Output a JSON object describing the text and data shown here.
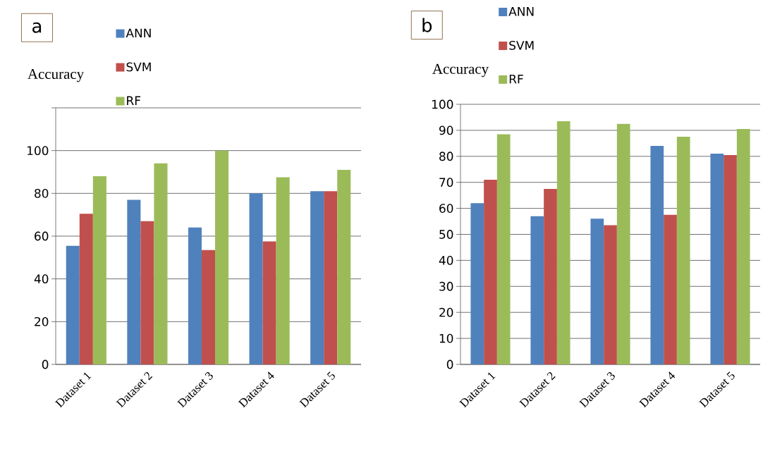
{
  "chart_data": [
    {
      "type": "bar",
      "title": "a",
      "ylabel": "Accuracy",
      "categories": [
        "Dataset 1",
        "Dataset 2",
        "Dataset 3",
        "Dataset 4",
        "Dataset 5"
      ],
      "series": [
        {
          "name": "ANN",
          "color": "#4f81bd",
          "values": [
            55.5,
            77,
            64,
            80,
            81
          ]
        },
        {
          "name": "SVM",
          "color": "#c0504d",
          "values": [
            70.5,
            67,
            53.5,
            57.5,
            81
          ]
        },
        {
          "name": "RF",
          "color": "#9bbb59",
          "values": [
            88,
            94,
            100,
            87.5,
            91
          ]
        }
      ],
      "ylim": [
        0,
        120
      ],
      "yticks": [
        0,
        20,
        40,
        60,
        80,
        100,
        {
          "value": 120,
          "label": null
        }
      ],
      "grid": "y",
      "legend": "top"
    },
    {
      "type": "bar",
      "title": "b",
      "ylabel": "Accuracy",
      "categories": [
        "Dataset 1",
        "Dataset 2",
        "Dataset 3",
        "Dataset 4",
        "Dataset 5"
      ],
      "series": [
        {
          "name": "ANN",
          "color": "#4f81bd",
          "values": [
            62,
            57,
            56,
            84,
            81
          ]
        },
        {
          "name": "SVM",
          "color": "#c0504d",
          "values": [
            71,
            67.5,
            53.5,
            57.5,
            80.5
          ]
        },
        {
          "name": "RF",
          "color": "#9bbb59",
          "values": [
            88.5,
            93.5,
            92.5,
            87.5,
            90.5
          ]
        }
      ],
      "ylim": [
        0,
        100
      ],
      "yticks": [
        0,
        10,
        20,
        30,
        40,
        50,
        60,
        70,
        80,
        90,
        100
      ],
      "grid": "y",
      "legend": "top"
    }
  ]
}
